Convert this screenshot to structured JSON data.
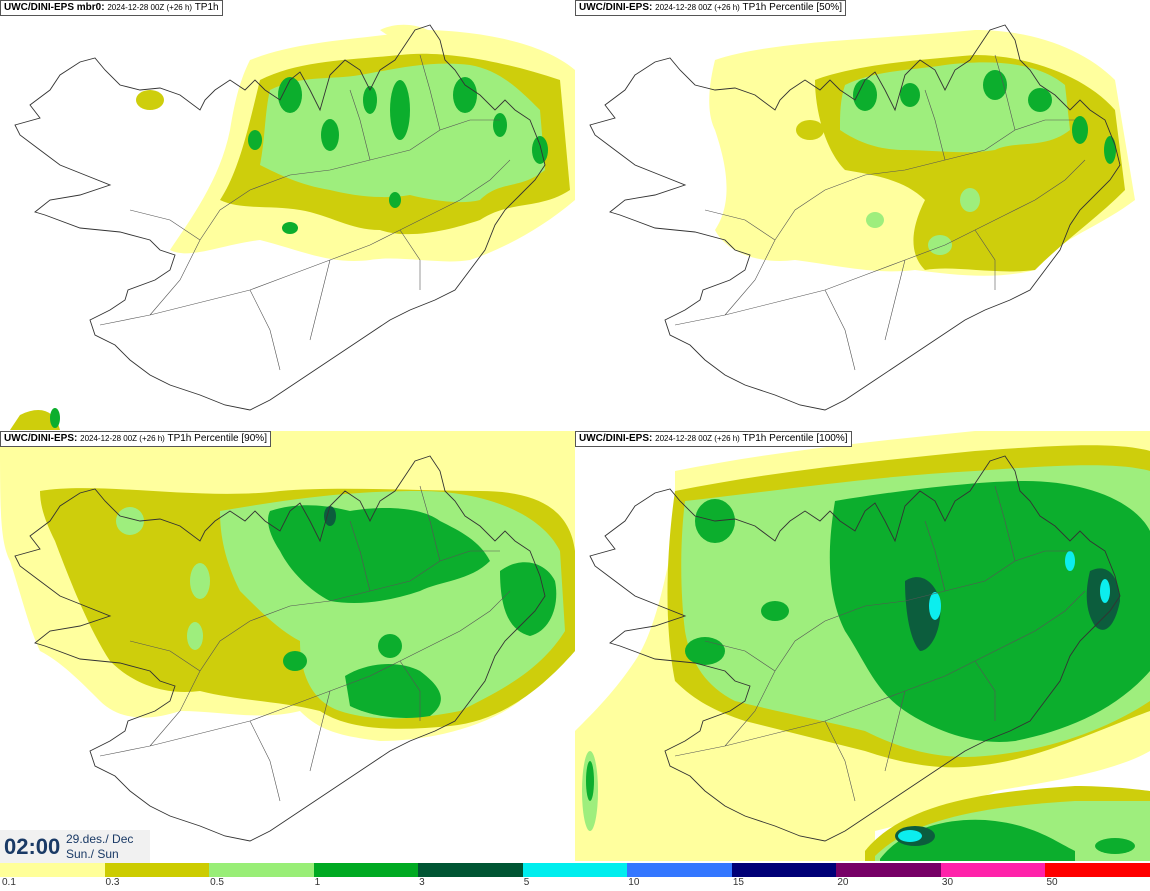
{
  "panels": [
    {
      "model": "UWC/DINI-EPS mbr0",
      "sep": ":",
      "run": "2024-12-28 00Z (+26 h)",
      "param": "TP1h"
    },
    {
      "model": "UWC/DINI-EPS",
      "sep": ":",
      "run": "2024-12-28 00Z (+26 h)",
      "param": "TP1h Percentile [50%]"
    },
    {
      "model": "UWC/DINI-EPS",
      "sep": ":",
      "run": "2024-12-28 00Z (+26 h)",
      "param": "TP1h Percentile [90%]"
    },
    {
      "model": "UWC/DINI-EPS",
      "sep": ":",
      "run": "2024-12-28 00Z (+26 h)",
      "param": "TP1h Percentile [100%]"
    }
  ],
  "time": {
    "hour": "02:00",
    "date_line1": "29.des./ Dec",
    "date_line2": "Sun./ Sun"
  },
  "legend": {
    "ticks": [
      "0.1",
      "0.3",
      "0.5",
      "1",
      "3",
      "5",
      "10",
      "15",
      "20",
      "30",
      "50"
    ],
    "colors": [
      "#ffff99",
      "#cccc00",
      "#99ee77",
      "#00aa22",
      "#005533",
      "#00eeee",
      "#3377ff",
      "#000077",
      "#770066",
      "#ff22aa",
      "#ff0000"
    ]
  },
  "colors": {
    "coast": "#333333",
    "roads": "#555555"
  }
}
